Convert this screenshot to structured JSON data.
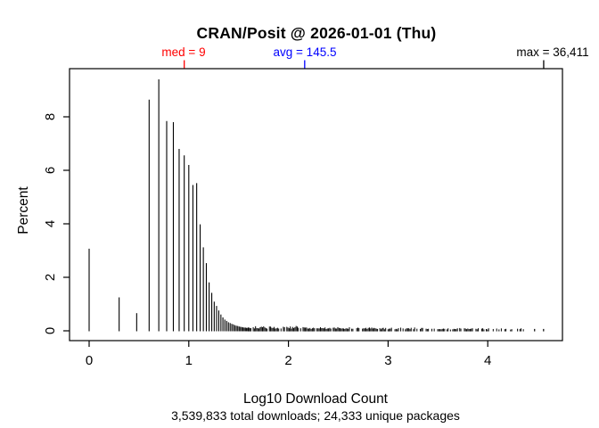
{
  "chart_data": {
    "type": "bar",
    "variant": "spike-histogram",
    "title": "CRAN/Posit @ 2026-01-01 (Thu)",
    "xlabel": "Log10 Download Count",
    "ylabel": "Percent",
    "subtitle": "3,539,833 total downloads; 24,333 unique packages",
    "grid": false,
    "bar_color": "#000000",
    "axis_color": "#000000",
    "x_axis": {
      "ticks": [
        0,
        1,
        2,
        3,
        4
      ],
      "range_shown": [
        -0.18,
        4.74
      ]
    },
    "y_axis": {
      "ticks": [
        0,
        2,
        4,
        6,
        8
      ],
      "range_shown": [
        -0.37,
        9.77
      ]
    },
    "annotations": {
      "median": {
        "label": "med = 9",
        "value": 9,
        "color": "#ff0000"
      },
      "mean": {
        "label": "avg = 145.5",
        "value": 145.5,
        "color": "#0000ff"
      },
      "max": {
        "label": "max = 36,411",
        "value": 36411,
        "color": "#000000"
      }
    },
    "bars_schema": [
      "download_count",
      "percent_of_packages"
    ],
    "bars": [
      [
        1,
        3.07
      ],
      [
        2,
        1.25
      ],
      [
        3,
        0.66
      ],
      [
        4,
        8.64
      ],
      [
        5,
        9.4
      ],
      [
        6,
        7.84
      ],
      [
        7,
        7.8
      ],
      [
        8,
        6.8
      ],
      [
        9,
        6.56
      ],
      [
        10,
        6.2
      ],
      [
        11,
        5.45
      ],
      [
        12,
        5.52
      ],
      [
        13,
        3.98
      ],
      [
        14,
        3.12
      ],
      [
        15,
        2.53
      ],
      [
        16,
        1.81
      ],
      [
        17,
        1.42
      ],
      [
        18,
        1.09
      ],
      [
        19,
        0.93
      ],
      [
        20,
        0.76
      ],
      [
        21,
        0.61
      ],
      [
        22,
        0.5
      ],
      [
        23,
        0.42
      ],
      [
        24,
        0.37
      ],
      [
        25,
        0.32
      ],
      [
        26,
        0.29
      ],
      [
        27,
        0.26
      ],
      [
        28,
        0.24
      ],
      [
        29,
        0.21
      ],
      [
        30,
        0.19
      ],
      [
        31,
        0.18
      ],
      [
        32,
        0.16
      ],
      [
        33,
        0.15
      ],
      [
        34,
        0.14
      ],
      [
        35,
        0.13
      ],
      [
        36,
        0.12
      ],
      [
        37,
        0.12
      ],
      [
        38,
        0.11
      ],
      [
        39,
        0.11
      ],
      [
        40,
        0.1
      ]
    ],
    "rug_segments": [
      {
        "from_log10": 1.6,
        "to_log10": 2.1,
        "height_pct": 0.13,
        "density": 0.95
      },
      {
        "from_log10": 2.1,
        "to_log10": 2.65,
        "height_pct": 0.1,
        "density": 0.9
      },
      {
        "from_log10": 2.65,
        "to_log10": 3.3,
        "height_pct": 0.09,
        "density": 0.8
      },
      {
        "from_log10": 3.3,
        "to_log10": 3.95,
        "height_pct": 0.08,
        "density": 0.72
      },
      {
        "from_log10": 3.95,
        "to_log10": 4.38,
        "height_pct": 0.07,
        "density": 0.55
      }
    ],
    "rug_dots_log10": [
      4.47,
      4.56
    ]
  }
}
